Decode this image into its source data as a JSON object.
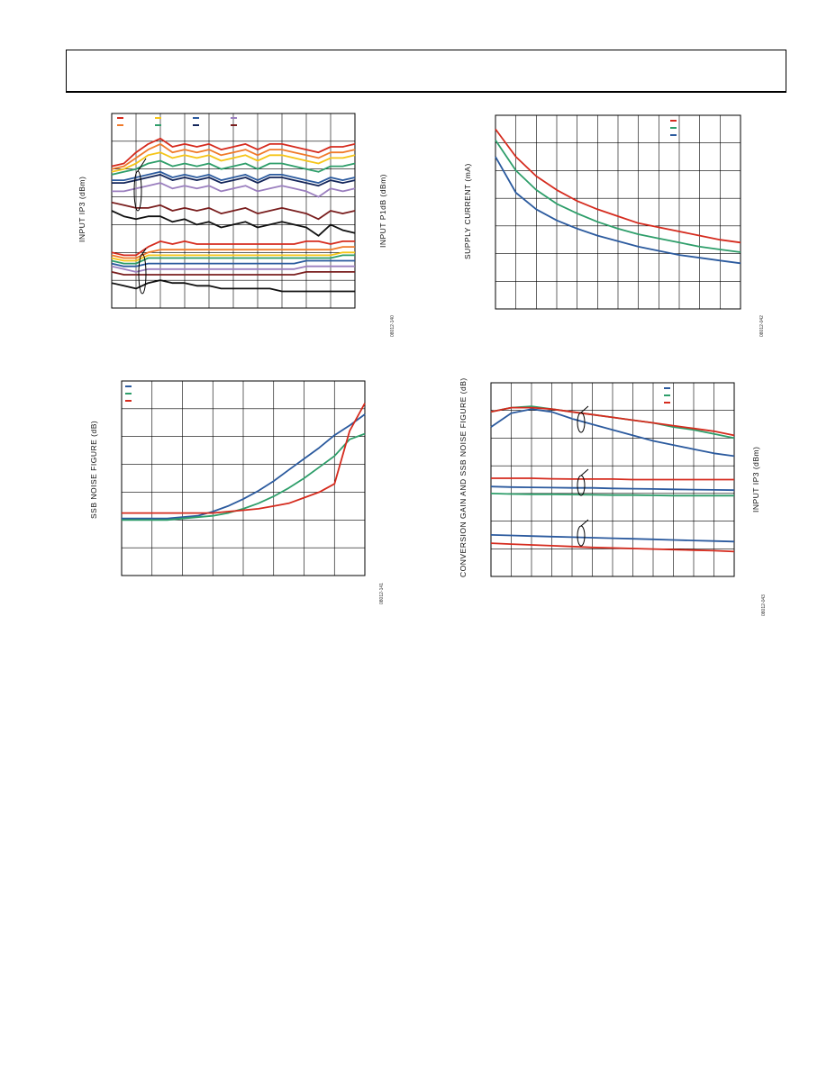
{
  "page": {
    "header_text": ""
  },
  "figures": [
    {
      "ylabel_left": "INPUT IP3 (dBm)",
      "ylabel_right": "INPUT P1dB (dBm)",
      "fig_id": "08012-140"
    },
    {
      "ylabel_left": "SUPPLY CURRENT (mA)",
      "fig_id": "08012-042"
    },
    {
      "ylabel_left": "SSB NOISE FIGURE (dB)",
      "fig_id": "08012-141"
    },
    {
      "ylabel_left": "CONVERSION GAIN AND SSB NOISE FIGURE (dB)",
      "ylabel_right": "INPUT IP3 (dBm)",
      "fig_id": "08012-043"
    }
  ],
  "chart_data": [
    {
      "type": "line",
      "title": "",
      "xlabel": "",
      "ylabel": "INPUT IP3 (dBm)",
      "y2label": "INPUT P1dB (dBm)",
      "grid": true,
      "legend": "top-left",
      "x": [
        0,
        0.5,
        1,
        1.5,
        2,
        2.5,
        3,
        3.5,
        4,
        4.5,
        5,
        5.5,
        6,
        6.5,
        7,
        7.5,
        8,
        8.5,
        9,
        9.5,
        10
      ],
      "series": [
        {
          "group": "IP3",
          "color": "#d52b1e",
          "values": [
            5.1,
            5.2,
            5.6,
            5.9,
            6.1,
            5.8,
            5.9,
            5.8,
            5.9,
            5.7,
            5.8,
            5.9,
            5.7,
            5.9,
            5.9,
            5.8,
            5.7,
            5.6,
            5.8,
            5.8,
            5.9
          ]
        },
        {
          "group": "IP3",
          "color": "#f07a2a",
          "values": [
            5.0,
            5.1,
            5.4,
            5.7,
            5.9,
            5.6,
            5.7,
            5.6,
            5.7,
            5.5,
            5.6,
            5.7,
            5.5,
            5.7,
            5.7,
            5.6,
            5.5,
            5.4,
            5.6,
            5.6,
            5.7
          ]
        },
        {
          "group": "IP3",
          "color": "#f5c518",
          "values": [
            4.9,
            5.0,
            5.2,
            5.5,
            5.6,
            5.4,
            5.5,
            5.4,
            5.5,
            5.3,
            5.4,
            5.5,
            5.3,
            5.5,
            5.5,
            5.4,
            5.3,
            5.2,
            5.4,
            5.4,
            5.5
          ]
        },
        {
          "group": "IP3",
          "color": "#2e9e6a",
          "values": [
            4.8,
            4.9,
            5.0,
            5.2,
            5.3,
            5.1,
            5.2,
            5.1,
            5.2,
            5.0,
            5.1,
            5.2,
            5.0,
            5.2,
            5.2,
            5.1,
            5.0,
            4.9,
            5.1,
            5.1,
            5.2
          ]
        },
        {
          "group": "IP3",
          "color": "#2b5a9e",
          "values": [
            4.6,
            4.6,
            4.7,
            4.8,
            4.9,
            4.7,
            4.8,
            4.7,
            4.8,
            4.6,
            4.7,
            4.8,
            4.6,
            4.8,
            4.8,
            4.7,
            4.6,
            4.5,
            4.7,
            4.6,
            4.7
          ]
        },
        {
          "group": "IP3",
          "color": "#14265a",
          "values": [
            4.5,
            4.5,
            4.6,
            4.7,
            4.8,
            4.6,
            4.7,
            4.6,
            4.7,
            4.5,
            4.6,
            4.7,
            4.5,
            4.7,
            4.7,
            4.6,
            4.5,
            4.4,
            4.6,
            4.5,
            4.6
          ]
        },
        {
          "group": "IP3",
          "color": "#9b7fbf",
          "values": [
            4.2,
            4.2,
            4.3,
            4.4,
            4.5,
            4.3,
            4.4,
            4.3,
            4.4,
            4.2,
            4.3,
            4.4,
            4.2,
            4.3,
            4.4,
            4.3,
            4.2,
            4.0,
            4.3,
            4.2,
            4.3
          ]
        },
        {
          "group": "IP3",
          "color": "#7a1f1f",
          "values": [
            3.8,
            3.7,
            3.6,
            3.6,
            3.7,
            3.5,
            3.6,
            3.5,
            3.6,
            3.4,
            3.5,
            3.6,
            3.4,
            3.5,
            3.6,
            3.5,
            3.4,
            3.2,
            3.5,
            3.4,
            3.5
          ]
        },
        {
          "group": "IP3",
          "color": "#111111",
          "values": [
            3.5,
            3.3,
            3.2,
            3.3,
            3.3,
            3.1,
            3.2,
            3.0,
            3.1,
            2.9,
            3.0,
            3.1,
            2.9,
            3.0,
            3.1,
            3.0,
            2.9,
            2.6,
            3.0,
            2.8,
            2.7
          ]
        },
        {
          "group": "P1dB",
          "color": "#d52b1e",
          "values": [
            2.0,
            1.9,
            1.9,
            2.2,
            2.4,
            2.3,
            2.4,
            2.3,
            2.3,
            2.3,
            2.3,
            2.3,
            2.3,
            2.3,
            2.3,
            2.3,
            2.4,
            2.4,
            2.3,
            2.4,
            2.4
          ]
        },
        {
          "group": "P1dB",
          "color": "#f07a2a",
          "values": [
            1.9,
            1.8,
            1.8,
            2.0,
            2.1,
            2.1,
            2.1,
            2.1,
            2.1,
            2.1,
            2.1,
            2.1,
            2.1,
            2.1,
            2.1,
            2.1,
            2.1,
            2.1,
            2.1,
            2.2,
            2.2
          ]
        },
        {
          "group": "P1dB",
          "color": "#f5c518",
          "values": [
            1.8,
            1.7,
            1.7,
            1.9,
            1.9,
            1.9,
            1.9,
            1.9,
            1.9,
            1.9,
            1.9,
            1.9,
            1.9,
            1.9,
            1.9,
            1.9,
            1.9,
            1.9,
            1.9,
            2.0,
            2.0
          ]
        },
        {
          "group": "P1dB",
          "color": "#2e9e6a",
          "values": [
            1.7,
            1.6,
            1.6,
            1.8,
            1.8,
            1.8,
            1.8,
            1.8,
            1.8,
            1.8,
            1.8,
            1.8,
            1.8,
            1.8,
            1.8,
            1.8,
            1.8,
            1.8,
            1.8,
            1.9,
            1.9
          ]
        },
        {
          "group": "P1dB",
          "color": "#2b5a9e",
          "values": [
            1.6,
            1.5,
            1.5,
            1.6,
            1.6,
            1.6,
            1.6,
            1.6,
            1.6,
            1.6,
            1.6,
            1.6,
            1.6,
            1.6,
            1.6,
            1.6,
            1.7,
            1.7,
            1.7,
            1.7,
            1.7
          ]
        },
        {
          "group": "P1dB",
          "color": "#9b7fbf",
          "values": [
            1.5,
            1.4,
            1.3,
            1.4,
            1.4,
            1.4,
            1.4,
            1.4,
            1.4,
            1.4,
            1.4,
            1.4,
            1.4,
            1.4,
            1.4,
            1.4,
            1.5,
            1.5,
            1.5,
            1.5,
            1.5
          ]
        },
        {
          "group": "P1dB",
          "color": "#7a1f1f",
          "values": [
            1.3,
            1.2,
            1.2,
            1.2,
            1.2,
            1.2,
            1.2,
            1.2,
            1.2,
            1.2,
            1.2,
            1.2,
            1.2,
            1.2,
            1.2,
            1.2,
            1.3,
            1.3,
            1.3,
            1.3,
            1.3
          ]
        },
        {
          "group": "P1dB",
          "color": "#111111",
          "values": [
            0.9,
            0.8,
            0.7,
            0.9,
            1.0,
            0.9,
            0.9,
            0.8,
            0.8,
            0.7,
            0.7,
            0.7,
            0.7,
            0.7,
            0.6,
            0.6,
            0.6,
            0.6,
            0.6,
            0.6,
            0.6
          ]
        }
      ]
    },
    {
      "type": "line",
      "title": "",
      "xlabel": "",
      "ylabel": "SUPPLY CURRENT (mA)",
      "grid": true,
      "legend": "top-right",
      "x": [
        0,
        1,
        2,
        3,
        4,
        5,
        6,
        7,
        8,
        9,
        10,
        11,
        12
      ],
      "series": [
        {
          "color": "#d52b1e",
          "values": [
            6.5,
            5.5,
            4.8,
            4.3,
            3.9,
            3.6,
            3.35,
            3.1,
            2.95,
            2.8,
            2.65,
            2.5,
            2.4
          ]
        },
        {
          "color": "#2e9e6a",
          "values": [
            6.1,
            5.0,
            4.3,
            3.8,
            3.45,
            3.15,
            2.9,
            2.7,
            2.55,
            2.4,
            2.25,
            2.15,
            2.05
          ]
        },
        {
          "color": "#2b5a9e",
          "values": [
            5.5,
            4.2,
            3.6,
            3.2,
            2.9,
            2.65,
            2.45,
            2.25,
            2.1,
            1.95,
            1.85,
            1.75,
            1.65
          ]
        }
      ]
    },
    {
      "type": "line",
      "title": "",
      "xlabel": "",
      "ylabel": "SSB NOISE FIGURE (dB)",
      "grid": true,
      "legend": "top-left",
      "x": [
        0,
        0.5,
        1,
        1.5,
        2,
        2.5,
        3,
        3.5,
        4,
        4.5,
        5,
        5.5,
        6,
        6.5,
        7,
        7.5,
        8
      ],
      "series": [
        {
          "color": "#2b5a9e",
          "values": [
            2.05,
            2.05,
            2.05,
            2.05,
            2.1,
            2.15,
            2.3,
            2.5,
            2.75,
            3.05,
            3.4,
            3.8,
            4.2,
            4.6,
            5.05,
            5.4,
            5.8
          ]
        },
        {
          "color": "#2e9e6a",
          "values": [
            2.0,
            2.0,
            2.0,
            2.0,
            2.05,
            2.1,
            2.15,
            2.25,
            2.4,
            2.6,
            2.85,
            3.15,
            3.5,
            3.9,
            4.3,
            4.9,
            5.1
          ]
        },
        {
          "color": "#d52b1e",
          "values": [
            2.25,
            2.25,
            2.25,
            2.25,
            2.25,
            2.25,
            2.25,
            2.3,
            2.35,
            2.4,
            2.5,
            2.6,
            2.8,
            3.0,
            3.3,
            5.2,
            6.2
          ]
        }
      ]
    },
    {
      "type": "line",
      "title": "",
      "xlabel": "",
      "ylabel": "CONVERSION GAIN AND SSB NOISE FIGURE (dB)",
      "y2label": "INPUT IP3 (dBm)",
      "grid": true,
      "legend": "top-right",
      "x": [
        0,
        0.5,
        1,
        1.5,
        2,
        2.5,
        3,
        3.5,
        4,
        4.5,
        5,
        5.5,
        6
      ],
      "series": [
        {
          "group": "IP3",
          "color": "#2b5a9e",
          "values": [
            5.4,
            5.9,
            6.05,
            5.95,
            5.7,
            5.5,
            5.3,
            5.1,
            4.9,
            4.75,
            4.6,
            4.45,
            4.35
          ]
        },
        {
          "group": "IP3",
          "color": "#2e9e6a",
          "values": [
            5.95,
            6.1,
            6.15,
            6.05,
            5.95,
            5.85,
            5.75,
            5.65,
            5.55,
            5.4,
            5.3,
            5.15,
            5.0
          ]
        },
        {
          "group": "IP3",
          "color": "#d52b1e",
          "values": [
            5.95,
            6.1,
            6.1,
            6.05,
            5.95,
            5.85,
            5.75,
            5.65,
            5.55,
            5.45,
            5.35,
            5.25,
            5.1
          ]
        },
        {
          "group": "Gain",
          "color": "#d52b1e",
          "values": [
            3.55,
            3.55,
            3.55,
            3.53,
            3.52,
            3.52,
            3.52,
            3.5,
            3.5,
            3.5,
            3.5,
            3.5,
            3.5
          ]
        },
        {
          "group": "Gain",
          "color": "#2b5a9e",
          "values": [
            3.25,
            3.23,
            3.22,
            3.21,
            3.2,
            3.2,
            3.18,
            3.17,
            3.16,
            3.15,
            3.14,
            3.13,
            3.12
          ]
        },
        {
          "group": "Gain",
          "color": "#2e9e6a",
          "values": [
            3.0,
            2.98,
            2.97,
            2.97,
            2.96,
            2.95,
            2.94,
            2.94,
            2.93,
            2.92,
            2.92,
            2.92,
            2.92
          ]
        },
        {
          "group": "NF",
          "color": "#2b5a9e",
          "values": [
            1.5,
            1.48,
            1.46,
            1.44,
            1.42,
            1.4,
            1.38,
            1.36,
            1.34,
            1.32,
            1.3,
            1.28,
            1.26
          ]
        },
        {
          "group": "NF",
          "color": "#d52b1e",
          "values": [
            1.2,
            1.17,
            1.14,
            1.11,
            1.08,
            1.05,
            1.03,
            1.01,
            0.99,
            0.97,
            0.95,
            0.93,
            0.9
          ]
        }
      ]
    }
  ]
}
